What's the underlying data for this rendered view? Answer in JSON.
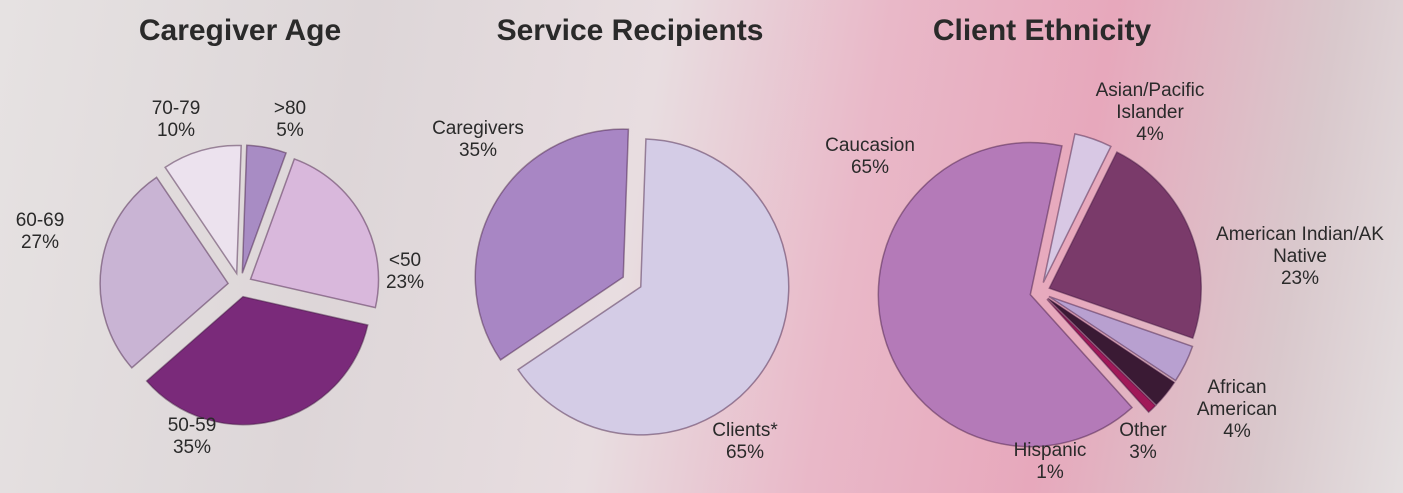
{
  "chart_data": [
    {
      "type": "pie",
      "title": "Caregiver Age",
      "categories": [
        ">80",
        "<50",
        "50-59",
        "60-69",
        "70-79"
      ],
      "values": [
        5,
        23,
        35,
        27,
        10
      ],
      "value_labels": [
        "5%",
        "23%",
        "35%",
        "27%",
        "10%"
      ],
      "colors": [
        "#a88cc4",
        "#d9b8dc",
        "#7a2a7a",
        "#c9b4d4",
        "#ece2ee"
      ]
    },
    {
      "type": "pie",
      "title": "Service Recipients",
      "categories": [
        "Caregivers",
        "Clients*"
      ],
      "values": [
        35,
        65
      ],
      "value_labels": [
        "35%",
        "65%"
      ],
      "colors": [
        "#a886c4",
        "#d4cce6"
      ]
    },
    {
      "type": "pie",
      "title": "Client Ethnicity",
      "categories": [
        "Asian/Pacific Islander",
        "American Indian/AK Native",
        "African American",
        "Other",
        "Hispanic",
        "Caucasion"
      ],
      "values": [
        4,
        23,
        4,
        3,
        1,
        65
      ],
      "value_labels": [
        "4%",
        "23%",
        "4%",
        "3%",
        "1%",
        "65%"
      ],
      "colors": [
        "#d8c8e4",
        "#7a3a6a",
        "#b8a0d0",
        "#3a1a34",
        "#a01858",
        "#b47ab8"
      ]
    }
  ]
}
